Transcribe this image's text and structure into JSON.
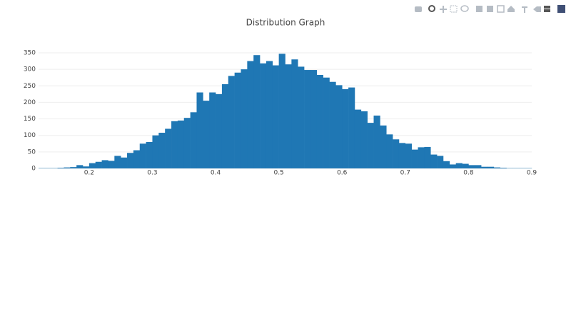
{
  "chart_data": {
    "type": "histogram",
    "title": "Distribution Graph",
    "bins": [
      0.12,
      0.13,
      0.14,
      0.15,
      0.16,
      0.17,
      0.18,
      0.19,
      0.2,
      0.21,
      0.22,
      0.23,
      0.24,
      0.25,
      0.26,
      0.27,
      0.28,
      0.29,
      0.3,
      0.31,
      0.32,
      0.33,
      0.34,
      0.35,
      0.36,
      0.37,
      0.38,
      0.39,
      0.4,
      0.41,
      0.42,
      0.43,
      0.44,
      0.45,
      0.46,
      0.47,
      0.48,
      0.49,
      0.5,
      0.51,
      0.52,
      0.53,
      0.54,
      0.55,
      0.56,
      0.57,
      0.58,
      0.59,
      0.6,
      0.61,
      0.62,
      0.63,
      0.64,
      0.65,
      0.66,
      0.67,
      0.68,
      0.69,
      0.7,
      0.71,
      0.72,
      0.73,
      0.74,
      0.75,
      0.76,
      0.77,
      0.78,
      0.79,
      0.8,
      0.81,
      0.82,
      0.83,
      0.84,
      0.85,
      0.86,
      0.87,
      0.88,
      0.89,
      0.9
    ],
    "counts": [
      1,
      1,
      1,
      2,
      3,
      4,
      10,
      6,
      16,
      20,
      25,
      23,
      38,
      33,
      47,
      55,
      75,
      80,
      100,
      108,
      120,
      143,
      145,
      153,
      170,
      230,
      205,
      230,
      225,
      255,
      280,
      290,
      300,
      325,
      343,
      318,
      325,
      312,
      347,
      315,
      330,
      308,
      298,
      298,
      283,
      275,
      262,
      252,
      240,
      245,
      178,
      173,
      138,
      160,
      130,
      103,
      88,
      77,
      75,
      57,
      64,
      65,
      42,
      38,
      22,
      12,
      16,
      14,
      10,
      10,
      5,
      5,
      3,
      2,
      1,
      1,
      1,
      1
    ],
    "color": "#1f77b4",
    "xlim": [
      0.12,
      0.9
    ],
    "xticks": [
      0.2,
      0.3,
      0.4,
      0.5,
      0.6,
      0.7,
      0.8,
      0.9
    ],
    "ylim": [
      0,
      364
    ],
    "yticks": [
      0,
      50,
      100,
      150,
      200,
      250,
      300,
      350
    ],
    "grid": true
  }
}
